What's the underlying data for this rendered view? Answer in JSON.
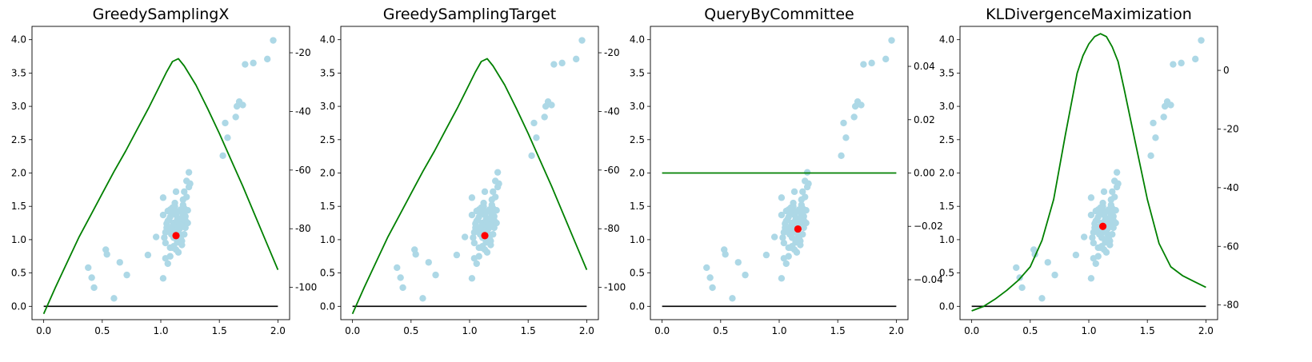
{
  "figure": {
    "background": "#ffffff",
    "scatter_color": "#add8e6",
    "highlight_color": "#ff0000",
    "curve_color": "#008000",
    "baseline_color": "#000000"
  },
  "chart_data": [
    {
      "type": "scatter",
      "title": "GreedySamplingX",
      "xlabel": "",
      "ylabel": "",
      "xlim": [
        -0.1,
        2.1
      ],
      "ylim": [
        -0.2,
        4.2
      ],
      "xticks": [
        "0.0",
        "0.5",
        "1.0",
        "1.5",
        "2.0"
      ],
      "yticks": [
        "0.0",
        "0.5",
        "1.0",
        "1.5",
        "2.0",
        "2.5",
        "3.0",
        "3.5",
        "4.0"
      ],
      "selected_point": [
        1.13,
        1.06
      ],
      "utility_axis": {
        "ylim": [
          -111,
          -11
        ],
        "ticks": [
          "-20",
          "-40",
          "-60",
          "-80",
          "-100"
        ],
        "curve_x": [
          0.0,
          0.1,
          0.2,
          0.3,
          0.4,
          0.5,
          0.6,
          0.7,
          0.8,
          0.9,
          1.0,
          1.05,
          1.1,
          1.15,
          1.2,
          1.3,
          1.4,
          1.5,
          1.6,
          1.7,
          1.8,
          1.9,
          2.0
        ],
        "curve_y": [
          -109,
          -100,
          -91.5,
          -83,
          -75.5,
          -68,
          -60.5,
          -53.5,
          -46,
          -38.5,
          -30.5,
          -26.5,
          -23,
          -22,
          -24.5,
          -31,
          -39,
          -47.5,
          -56.5,
          -65.5,
          -75,
          -84.5,
          -94
        ]
      }
    },
    {
      "type": "scatter",
      "title": "GreedySamplingTarget",
      "xlabel": "",
      "ylabel": "",
      "xlim": [
        -0.1,
        2.1
      ],
      "ylim": [
        -0.2,
        4.2
      ],
      "xticks": [
        "0.0",
        "0.5",
        "1.0",
        "1.5",
        "2.0"
      ],
      "yticks": [
        "0.0",
        "0.5",
        "1.0",
        "1.5",
        "2.0",
        "2.5",
        "3.0",
        "3.5",
        "4.0"
      ],
      "selected_point": [
        1.13,
        1.06
      ],
      "utility_axis": {
        "ylim": [
          -111,
          -11
        ],
        "ticks": [
          "-20",
          "-40",
          "-60",
          "-80",
          "-100"
        ],
        "curve_x": [
          0.0,
          0.1,
          0.2,
          0.3,
          0.4,
          0.5,
          0.6,
          0.7,
          0.8,
          0.9,
          1.0,
          1.05,
          1.1,
          1.15,
          1.2,
          1.3,
          1.4,
          1.5,
          1.6,
          1.7,
          1.8,
          1.9,
          2.0
        ],
        "curve_y": [
          -109,
          -100,
          -91.5,
          -83,
          -75.5,
          -68,
          -60.5,
          -53.5,
          -46,
          -38.5,
          -30.5,
          -26.5,
          -23,
          -22,
          -24.5,
          -31,
          -39,
          -47.5,
          -56.5,
          -65.5,
          -75,
          -84.5,
          -94
        ]
      }
    },
    {
      "type": "scatter",
      "title": "QueryByCommittee",
      "xlabel": "",
      "ylabel": "",
      "xlim": [
        -0.1,
        2.1
      ],
      "ylim": [
        -0.2,
        4.2
      ],
      "xticks": [
        "0.0",
        "0.5",
        "1.0",
        "1.5",
        "2.0"
      ],
      "yticks": [
        "0.0",
        "0.5",
        "1.0",
        "1.5",
        "2.0",
        "2.5",
        "3.0",
        "3.5",
        "4.0"
      ],
      "selected_point": [
        1.16,
        1.16
      ],
      "utility_axis": {
        "ylim": [
          -0.055,
          0.055
        ],
        "ticks": [
          "0.04",
          "0.02",
          "0.00",
          "−0.02",
          "−0.04"
        ],
        "curve_x": [
          0.0,
          2.0
        ],
        "curve_y": [
          0.0,
          0.0
        ]
      }
    },
    {
      "type": "scatter",
      "title": "KLDivergenceMaximization",
      "xlabel": "",
      "ylabel": "",
      "xlim": [
        -0.1,
        2.1
      ],
      "ylim": [
        -0.2,
        4.2
      ],
      "xticks": [
        "0.0",
        "0.5",
        "1.0",
        "1.5",
        "2.0"
      ],
      "yticks": [
        "0.0",
        "0.5",
        "1.0",
        "1.5",
        "2.0",
        "2.5",
        "3.0",
        "3.5",
        "4.0"
      ],
      "selected_point": [
        1.12,
        1.2
      ],
      "utility_axis": {
        "ylim": [
          -85,
          15
        ],
        "ticks": [
          "0",
          "-20",
          "-40",
          "-60",
          "-80"
        ],
        "curve_x": [
          0.0,
          0.1,
          0.2,
          0.3,
          0.4,
          0.5,
          0.6,
          0.7,
          0.8,
          0.9,
          0.95,
          1.0,
          1.05,
          1.1,
          1.15,
          1.2,
          1.25,
          1.3,
          1.4,
          1.5,
          1.6,
          1.7,
          1.8,
          1.9,
          2.0
        ],
        "curve_y": [
          -82,
          -80.5,
          -78,
          -75,
          -71.5,
          -67,
          -58,
          -44,
          -22,
          -1,
          5,
          9,
          11.5,
          12.5,
          11.5,
          8,
          3,
          -6,
          -25,
          -44,
          -59,
          -67,
          -70,
          -72,
          -74
        ]
      }
    }
  ],
  "shared_scatter": {
    "x": [
      0.38,
      0.43,
      0.41,
      0.53,
      0.54,
      0.6,
      0.65,
      0.71,
      0.89,
      0.96,
      1.02,
      1.03,
      1.04,
      1.05,
      1.06,
      1.07,
      1.08,
      1.09,
      1.1,
      1.1,
      1.11,
      1.11,
      1.12,
      1.12,
      1.13,
      1.14,
      1.14,
      1.15,
      1.15,
      1.16,
      1.16,
      1.17,
      1.18,
      1.18,
      1.19,
      1.19,
      1.2,
      1.2,
      1.21,
      1.22,
      1.22,
      1.23,
      1.24,
      1.24,
      1.25,
      1.02,
      1.04,
      1.06,
      1.08,
      1.1,
      1.12,
      1.13,
      1.15,
      1.17,
      1.19,
      1.21,
      1.08,
      1.1,
      1.12,
      1.14,
      1.16,
      1.18,
      1.2,
      1.05,
      1.07,
      1.09,
      1.11,
      1.13,
      1.15,
      1.17,
      1.19,
      1.21,
      1.23,
      1.08,
      1.13,
      1.04,
      1.02,
      1.06,
      1.53,
      1.57,
      1.55,
      1.64,
      1.65,
      1.67,
      1.7,
      1.72,
      1.79,
      1.91,
      1.96
    ],
    "y": [
      0.58,
      0.28,
      0.43,
      0.85,
      0.78,
      0.12,
      0.66,
      0.47,
      0.77,
      1.04,
      1.37,
      1.03,
      1.11,
      1.18,
      1.43,
      1.3,
      0.88,
      1.08,
      1.2,
      1.48,
      1.25,
      1.03,
      1.13,
      1.5,
      1.37,
      0.96,
      1.22,
      1.3,
      1.42,
      1.08,
      1.16,
      1.45,
      1.26,
      0.98,
      1.38,
      1.6,
      1.47,
      1.72,
      1.29,
      1.64,
      1.88,
      1.44,
      1.79,
      2.01,
      1.84,
      1.63,
      0.95,
      1.28,
      1.34,
      1.07,
      1.55,
      1.12,
      0.81,
      1.02,
      1.2,
      1.35,
      0.75,
      0.88,
      1.42,
      1.3,
      1.22,
      0.92,
      1.08,
      1.24,
      1.16,
      1.4,
      0.9,
      1.72,
      1.0,
      1.32,
      1.52,
      1.18,
      1.25,
      1.45,
      0.85,
      0.72,
      0.42,
      0.64,
      2.26,
      2.53,
      2.75,
      2.84,
      3.0,
      3.07,
      3.02,
      3.63,
      3.65,
      3.71,
      3.99
    ]
  }
}
